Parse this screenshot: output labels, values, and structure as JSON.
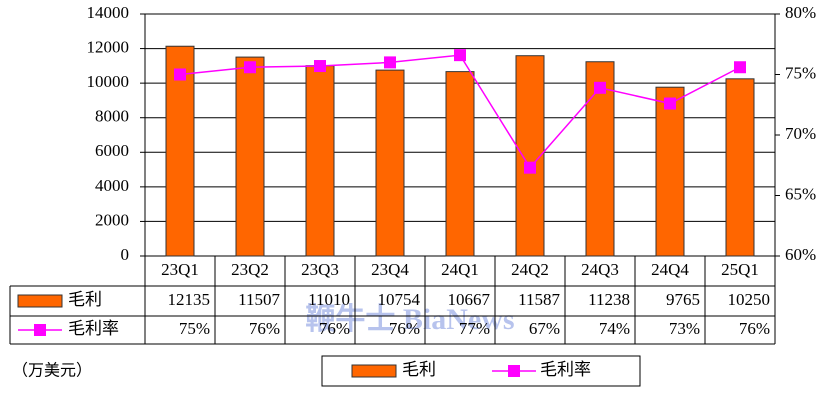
{
  "chart_data": {
    "type": "bar",
    "categories": [
      "23Q1",
      "23Q2",
      "23Q3",
      "23Q4",
      "24Q1",
      "24Q2",
      "24Q3",
      "24Q4",
      "25Q1"
    ],
    "series": [
      {
        "name": "毛利",
        "type": "bar",
        "color": "#FF6600",
        "values": [
          12135,
          11507,
          11010,
          10754,
          10667,
          11587,
          11238,
          9765,
          10250
        ]
      },
      {
        "name": "毛利率",
        "type": "line",
        "axis": "y2",
        "color": "#FF00FF",
        "values": [
          75.0,
          75.6,
          75.7,
          76.0,
          76.6,
          67.3,
          73.9,
          72.6,
          75.6
        ],
        "value_labels": [
          "75%",
          "76%",
          "76%",
          "76%",
          "77%",
          "67%",
          "74%",
          "73%",
          "76%"
        ]
      }
    ],
    "ylim": [
      0,
      14000
    ],
    "yticks": [
      0,
      2000,
      4000,
      6000,
      8000,
      10000,
      12000,
      14000
    ],
    "y2lim": [
      60,
      80
    ],
    "y2ticks": [
      {
        "value": 60,
        "label": "60%"
      },
      {
        "value": 65,
        "label": "65%"
      },
      {
        "value": 70,
        "label": "70%"
      },
      {
        "value": 75,
        "label": "75%"
      },
      {
        "value": 80,
        "label": "80%"
      }
    ],
    "grid": true,
    "legend": "bottom",
    "unit_note": "（万美元）",
    "watermark": "鞭牛士 BiaNews"
  }
}
